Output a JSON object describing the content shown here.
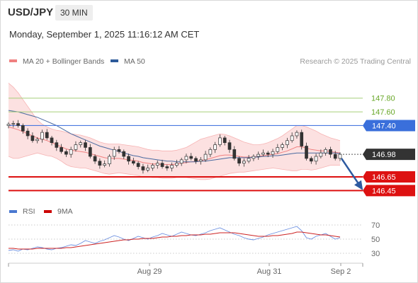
{
  "header": {
    "pair": "USD/JPY",
    "timeframe": "30 MIN"
  },
  "datetime": "Monday, September 1, 2025 11:16:12 AM CET",
  "legend": [
    {
      "label": "MA 20 + Bollinger Bands",
      "color": "#f08080"
    },
    {
      "label": "MA 50",
      "color": "#2d5a9a"
    }
  ],
  "credit": "Research © 2025 Trading Central",
  "rsi_legend": [
    {
      "label": "RSI",
      "color": "#4a78d0"
    },
    {
      "label": "9MA",
      "color": "#cc0000"
    }
  ],
  "chart_data": [
    {
      "type": "candlestick",
      "title": "USD/JPY",
      "ylim": [
        146.32,
        148.2
      ],
      "x_ticks": [
        "Aug 29",
        "Aug 31",
        "Sep 2"
      ],
      "levels": [
        {
          "value": 147.8,
          "label": "147.80",
          "style": "green-line"
        },
        {
          "value": 147.6,
          "label": "147.60",
          "style": "green-line"
        },
        {
          "value": 147.4,
          "label": "147.40",
          "style": "blue-line"
        },
        {
          "value": 146.65,
          "label": "146.65",
          "style": "red-line"
        },
        {
          "value": 146.45,
          "label": "146.45",
          "style": "red-line"
        }
      ],
      "last_price": {
        "value": 146.98,
        "label": "146.98"
      },
      "close": [
        147.42,
        147.43,
        147.4,
        147.32,
        147.25,
        147.18,
        147.2,
        147.3,
        147.22,
        147.15,
        147.08,
        147.02,
        146.98,
        147.05,
        147.12,
        147.15,
        147.08,
        146.95,
        146.88,
        146.82,
        146.84,
        146.95,
        147.05,
        147.02,
        146.95,
        146.88,
        146.85,
        146.8,
        146.75,
        146.78,
        146.82,
        146.85,
        146.8,
        146.78,
        146.82,
        146.85,
        146.9,
        146.95,
        146.92,
        146.88,
        146.9,
        146.98,
        147.05,
        147.12,
        147.22,
        147.15,
        147.05,
        146.92,
        146.85,
        146.88,
        146.92,
        146.95,
        146.98,
        147.0,
        146.98,
        147.02,
        147.08,
        147.12,
        147.18,
        147.25,
        147.3,
        147.1,
        146.92,
        146.88,
        146.95,
        147.0,
        147.05,
        146.98,
        146.92,
        146.98
      ],
      "ma20": [
        147.38,
        147.36,
        147.34,
        147.31,
        147.28,
        147.25,
        147.22,
        147.2,
        147.18,
        147.15,
        147.12,
        147.09,
        147.06,
        147.04,
        147.03,
        147.02,
        147.01,
        146.99,
        146.97,
        146.95,
        146.93,
        146.92,
        146.92,
        146.92,
        146.91,
        146.9,
        146.89,
        146.88,
        146.86,
        146.85,
        146.84,
        146.84,
        146.83,
        146.83,
        146.83,
        146.84,
        146.85,
        146.86,
        146.87,
        146.88,
        146.89,
        146.9,
        146.92,
        146.94,
        146.96,
        146.97,
        146.97,
        146.96,
        146.95,
        146.94,
        146.94,
        146.94,
        146.95,
        146.96,
        146.97,
        146.98,
        146.99,
        147.01,
        147.03,
        147.06,
        147.09,
        147.09,
        147.07,
        147.05,
        147.04,
        147.03,
        147.03,
        147.02,
        147.01,
        147.0
      ],
      "bb_upper": [
        148.02,
        147.96,
        147.88,
        147.78,
        147.68,
        147.58,
        147.48,
        147.42,
        147.38,
        147.35,
        147.33,
        147.32,
        147.3,
        147.28,
        147.27,
        147.26,
        147.24,
        147.22,
        147.19,
        147.16,
        147.14,
        147.13,
        147.13,
        147.13,
        147.12,
        147.11,
        147.1,
        147.09,
        147.07,
        147.05,
        147.04,
        147.04,
        147.03,
        147.03,
        147.03,
        147.04,
        147.06,
        147.08,
        147.12,
        147.16,
        147.2,
        147.22,
        147.24,
        147.26,
        147.28,
        147.27,
        147.25,
        147.22,
        147.19,
        147.16,
        147.14,
        147.12,
        147.12,
        147.13,
        147.15,
        147.18,
        147.21,
        147.25,
        147.3,
        147.35,
        147.4,
        147.4,
        147.38,
        147.35,
        147.32,
        147.28,
        147.25,
        147.22,
        147.2,
        147.18
      ],
      "bb_lower": [
        146.95,
        146.92,
        146.92,
        146.94,
        146.96,
        146.98,
        147.0,
        146.98,
        146.96,
        146.95,
        146.92,
        146.88,
        146.83,
        146.8,
        146.79,
        146.78,
        146.78,
        146.76,
        146.74,
        146.72,
        146.7,
        146.69,
        146.7,
        146.71,
        146.7,
        146.69,
        146.68,
        146.67,
        146.65,
        146.65,
        146.64,
        146.64,
        146.63,
        146.63,
        146.63,
        146.64,
        146.64,
        146.64,
        146.63,
        146.62,
        146.61,
        146.61,
        146.62,
        146.64,
        146.66,
        146.68,
        146.7,
        146.71,
        146.72,
        146.72,
        146.73,
        146.74,
        146.75,
        146.76,
        146.77,
        146.78,
        146.77,
        146.76,
        146.75,
        146.74,
        146.74,
        146.76,
        146.76,
        146.75,
        146.76,
        146.78,
        146.8,
        146.82,
        146.82,
        146.82
      ],
      "ma50": [
        147.62,
        147.61,
        147.6,
        147.58,
        147.56,
        147.54,
        147.52,
        147.49,
        147.46,
        147.43,
        147.4,
        147.36,
        147.32,
        147.28,
        147.25,
        147.22,
        147.19,
        147.16,
        147.13,
        147.1,
        147.08,
        147.06,
        147.04,
        147.02,
        147.0,
        146.98,
        146.96,
        146.95,
        146.93,
        146.92,
        146.91,
        146.9,
        146.89,
        146.88,
        146.88,
        146.87,
        146.87,
        146.87,
        146.87,
        146.87,
        146.88,
        146.88,
        146.89,
        146.9,
        146.91,
        146.92,
        146.93,
        146.93,
        146.93,
        146.93,
        146.93,
        146.94,
        146.94,
        146.95,
        146.95,
        146.96,
        146.96,
        146.97,
        146.98,
        146.99,
        147.0,
        147.0,
        147.0,
        147.0,
        147.0,
        147.0,
        147.0,
        147.0,
        147.0,
        146.99
      ]
    },
    {
      "type": "line",
      "title": "RSI",
      "ylim": [
        20,
        80
      ],
      "y_ticks": [
        30,
        50,
        70
      ],
      "series": [
        {
          "name": "RSI",
          "values": [
            34,
            35,
            33,
            36,
            35,
            37,
            39,
            38,
            36,
            35,
            37,
            38,
            40,
            42,
            41,
            44,
            48,
            46,
            44,
            47,
            49,
            52,
            55,
            53,
            50,
            48,
            51,
            54,
            52,
            50,
            53,
            55,
            58,
            56,
            54,
            57,
            60,
            58,
            56,
            55,
            57,
            59,
            62,
            64,
            66,
            63,
            60,
            57,
            55,
            52,
            50,
            49,
            51,
            53,
            56,
            58,
            60,
            62,
            64,
            66,
            68,
            62,
            52,
            50,
            54,
            56,
            58,
            54,
            50,
            52
          ]
        },
        {
          "name": "9MA",
          "values": [
            37,
            37,
            36,
            36,
            36,
            36,
            37,
            37,
            37,
            37,
            37,
            37,
            38,
            38,
            39,
            40,
            41,
            42,
            43,
            44,
            45,
            46,
            47,
            48,
            49,
            49,
            50,
            50,
            51,
            51,
            51,
            52,
            53,
            53,
            54,
            54,
            55,
            55,
            56,
            56,
            56,
            57,
            57,
            58,
            59,
            59,
            59,
            59,
            58,
            57,
            56,
            55,
            54,
            54,
            54,
            55,
            55,
            56,
            57,
            58,
            60,
            60,
            59,
            58,
            57,
            56,
            56,
            55,
            54,
            53
          ]
        }
      ]
    }
  ]
}
